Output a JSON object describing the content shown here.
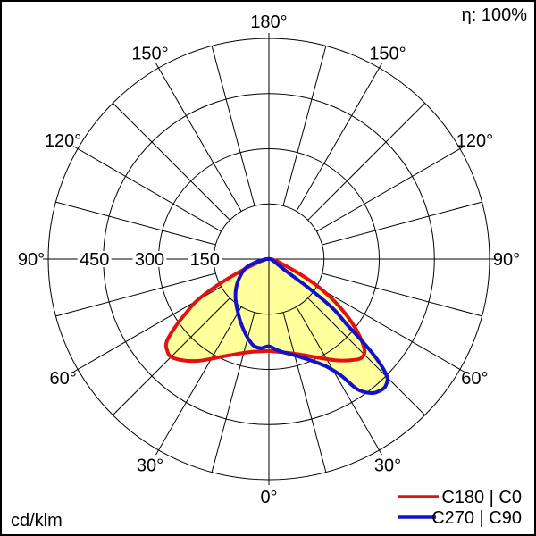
{
  "header": {
    "efficiency": "η: 100%"
  },
  "footer": {
    "unit": "cd/klm"
  },
  "chart_data": {
    "type": "polar",
    "subtype": "luminous-intensity-distribution",
    "unit": "cd/klm",
    "efficiency_percent": 100,
    "angle_labels_deg": [
      0,
      30,
      60,
      90,
      120,
      150,
      180
    ],
    "radial_grid_step_deg": 15,
    "angle_label_step_deg": 30,
    "rings": {
      "values": [
        150,
        300,
        450,
        600
      ],
      "labeled": [
        "150",
        "300",
        "450"
      ]
    },
    "fill_color": "#ffff9c",
    "grid_color": "#000000",
    "series": [
      {
        "name": "C180 | C0",
        "color": "#e01212",
        "left_plane": "C180",
        "right_plane": "C0",
        "left": [
          [
            0,
            250
          ],
          [
            5,
            252
          ],
          [
            10,
            256
          ],
          [
            15,
            264
          ],
          [
            20,
            276
          ],
          [
            25,
            292
          ],
          [
            30,
            313
          ],
          [
            35,
            338
          ],
          [
            40,
            360
          ],
          [
            45,
            376
          ],
          [
            48,
            372
          ],
          [
            51,
            358
          ],
          [
            54,
            316
          ],
          [
            57,
            268
          ],
          [
            60,
            225
          ],
          [
            63,
            160
          ],
          [
            66,
            95
          ],
          [
            69,
            55
          ],
          [
            72,
            33
          ],
          [
            75,
            21
          ],
          [
            80,
            12
          ],
          [
            85,
            8
          ],
          [
            90,
            5
          ],
          [
            100,
            2
          ]
        ],
        "right": [
          [
            0,
            250
          ],
          [
            5,
            253
          ],
          [
            10,
            258
          ],
          [
            15,
            266
          ],
          [
            20,
            278
          ],
          [
            25,
            294
          ],
          [
            30,
            314
          ],
          [
            35,
            337
          ],
          [
            40,
            358
          ],
          [
            43,
            368
          ],
          [
            46,
            362
          ],
          [
            49,
            332
          ],
          [
            52,
            292
          ],
          [
            55,
            247
          ],
          [
            58,
            200
          ],
          [
            61,
            150
          ],
          [
            64,
            98
          ],
          [
            67,
            58
          ],
          [
            70,
            38
          ],
          [
            75,
            22
          ],
          [
            80,
            13
          ],
          [
            85,
            8
          ],
          [
            90,
            6
          ],
          [
            100,
            2
          ]
        ]
      },
      {
        "name": "C270 | C90",
        "color": "#1212cc",
        "left_plane": "C270",
        "right_plane": "C90",
        "left": [
          [
            0,
            237
          ],
          [
            5,
            243
          ],
          [
            10,
            239
          ],
          [
            15,
            222
          ],
          [
            20,
            203
          ],
          [
            25,
            185
          ],
          [
            30,
            168
          ],
          [
            35,
            154
          ],
          [
            40,
            141
          ],
          [
            45,
            128
          ],
          [
            50,
            115
          ],
          [
            55,
            102
          ],
          [
            60,
            89
          ],
          [
            65,
            77
          ],
          [
            70,
            64
          ],
          [
            75,
            42
          ],
          [
            80,
            22
          ],
          [
            85,
            12
          ],
          [
            90,
            7
          ],
          [
            100,
            2
          ]
        ],
        "right": [
          [
            0,
            237
          ],
          [
            5,
            248
          ],
          [
            10,
            259
          ],
          [
            15,
            271
          ],
          [
            20,
            288
          ],
          [
            25,
            311
          ],
          [
            28,
            330
          ],
          [
            30,
            349
          ],
          [
            32,
            376
          ],
          [
            34,
            425
          ],
          [
            36,
            448
          ],
          [
            38,
            462
          ],
          [
            40,
            468
          ],
          [
            42,
            470
          ],
          [
            44,
            463
          ],
          [
            45,
            455
          ],
          [
            46,
            436
          ],
          [
            47,
            407
          ],
          [
            48,
            368
          ],
          [
            49,
            320
          ],
          [
            50,
            276
          ],
          [
            51,
            252
          ],
          [
            52,
            230
          ],
          [
            53,
            192
          ],
          [
            54,
            134
          ],
          [
            55,
            62
          ],
          [
            56,
            43
          ],
          [
            58,
            30
          ],
          [
            60,
            25
          ],
          [
            63,
            19
          ],
          [
            66,
            15
          ],
          [
            70,
            12
          ],
          [
            75,
            9
          ],
          [
            80,
            6
          ],
          [
            85,
            5
          ],
          [
            90,
            4
          ],
          [
            100,
            2
          ]
        ]
      }
    ]
  }
}
